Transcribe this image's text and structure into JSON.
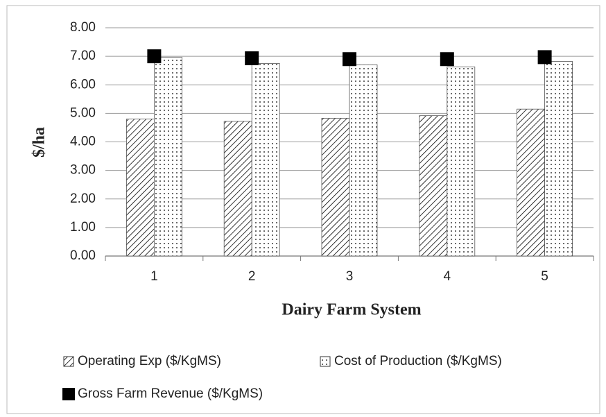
{
  "chart_data": {
    "type": "bar",
    "categories": [
      "1",
      "2",
      "3",
      "4",
      "5"
    ],
    "x_label": "Dairy Farm System",
    "y_label": "$/ha",
    "ylim": [
      0,
      8
    ],
    "yticks": [
      {
        "value": 0,
        "label": "0.00"
      },
      {
        "value": 1,
        "label": "1.00"
      },
      {
        "value": 2,
        "label": "2.00"
      },
      {
        "value": 3,
        "label": "3.00"
      },
      {
        "value": 4,
        "label": "4.00"
      },
      {
        "value": 5,
        "label": "5.00"
      },
      {
        "value": 6,
        "label": "6.00"
      },
      {
        "value": 7,
        "label": "7.00"
      },
      {
        "value": 8,
        "label": "8.00"
      }
    ],
    "grid": true,
    "legend": "bottom",
    "series": [
      {
        "name": "Operating Exp ($/KgMS)",
        "color": "#000000",
        "pattern": "hatch",
        "values": [
          4.8,
          4.72,
          4.83,
          4.92,
          5.15
        ]
      },
      {
        "name": "Cost of Production ($/KgMS)",
        "color": "#000000",
        "pattern": "dots",
        "values": [
          6.97,
          6.75,
          6.7,
          6.63,
          6.82
        ]
      },
      {
        "name": "Gross Farm Revenue ($/KgMS)",
        "color": "#000000",
        "marker": "square",
        "values": [
          7.0,
          6.93,
          6.9,
          6.9,
          6.97
        ]
      }
    ]
  }
}
